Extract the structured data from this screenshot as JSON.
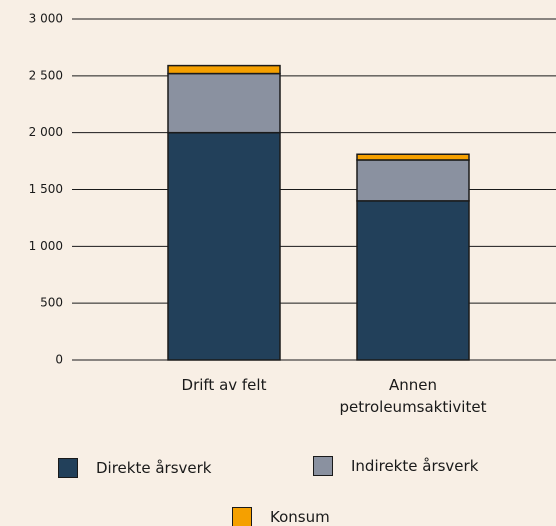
{
  "chart_data": {
    "type": "stacked_bar",
    "categories": [
      "Drift av felt",
      "Annen petroleumsaktivitet"
    ],
    "series": [
      {
        "name": "Direkte årsverk",
        "color": "#22405a",
        "values": [
          2000,
          1400
        ]
      },
      {
        "name": "Indirekte årsverk",
        "color": "#8a91a0",
        "values": [
          520,
          360
        ]
      },
      {
        "name": "Konsum",
        "color": "#f5a000",
        "values": [
          70,
          50
        ]
      }
    ],
    "ylim": [
      0,
      3000
    ],
    "yticks": [
      0,
      500,
      {
        "value": 1000,
        "label": "1 000"
      },
      {
        "value": 1500,
        "label": "1 500"
      },
      {
        "value": 2000,
        "label": "2 000"
      },
      {
        "value": 2500,
        "label": "2 500"
      },
      {
        "value": 3000,
        "label": "3 000"
      }
    ],
    "grid": true
  }
}
